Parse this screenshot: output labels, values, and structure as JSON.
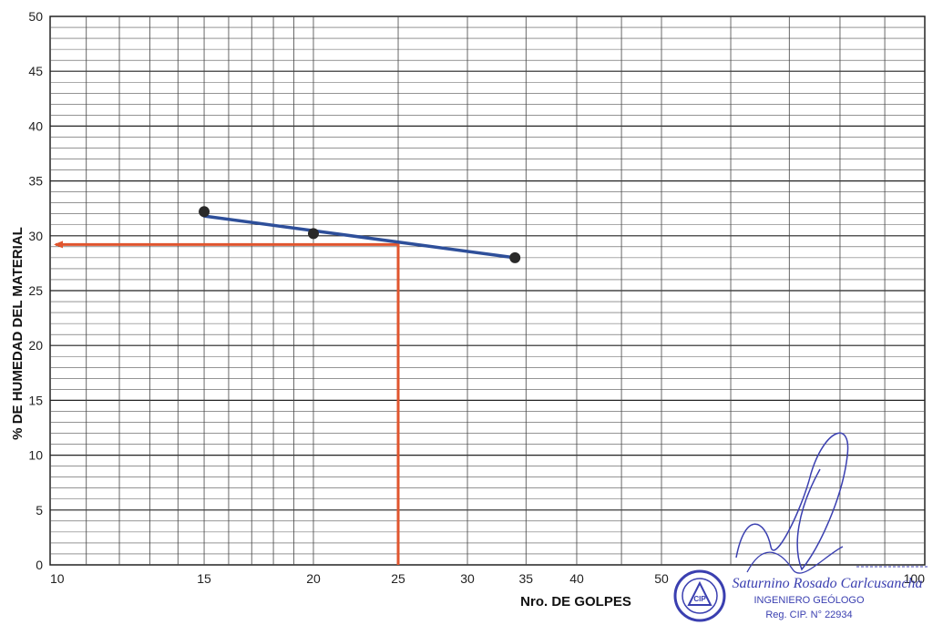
{
  "chart_data": {
    "type": "line",
    "xlabel": "Nro. DE GOLPES",
    "ylabel": "% DE HUMEDAD DEL MATERIAL",
    "xscale": "log",
    "xlim": [
      10,
      100
    ],
    "ylim": [
      0,
      50
    ],
    "x_ticks": [
      10,
      15,
      20,
      25,
      30,
      35,
      40,
      50,
      100
    ],
    "y_ticks": [
      0,
      5,
      10,
      15,
      20,
      25,
      30,
      35,
      40,
      45,
      50
    ],
    "grid": true,
    "points": [
      {
        "x": 15,
        "y": 32.2
      },
      {
        "x": 20,
        "y": 30.2
      },
      {
        "x": 34,
        "y": 28.0
      }
    ],
    "trend_line": {
      "x": [
        15,
        34
      ],
      "y": [
        31.8,
        28.0
      ],
      "color": "#2e4f9a"
    },
    "reference_line": {
      "x": 25,
      "y": 29.2,
      "color": "#e0552e"
    },
    "colors": {
      "points": "#2a2a2a",
      "trend": "#2e4f9a",
      "reference": "#e0552e",
      "grid": "#333333"
    }
  },
  "stamp": {
    "signature_name": "Saturnino Rosado Carlcusancha",
    "title": "INGENIERO GEÓLOGO",
    "reg": "Reg. CIP. N° 22934",
    "seal_letters": "CIP",
    "color": "#3a3fb0"
  }
}
